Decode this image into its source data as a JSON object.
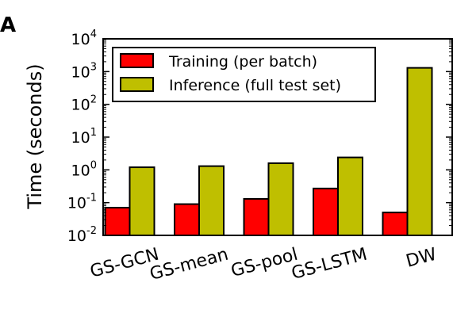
{
  "panel_label": "A",
  "chart_data": {
    "type": "bar",
    "categories": [
      "GS-GCN",
      "GS-mean",
      "GS-pool",
      "GS-LSTM",
      "DW"
    ],
    "series": [
      {
        "name": "Training (per batch)",
        "color": "#ff0000",
        "values": [
          0.07,
          0.09,
          0.13,
          0.27,
          0.05
        ]
      },
      {
        "name": "Inference (full test set)",
        "color": "#bfbf00",
        "values": [
          1.2,
          1.3,
          1.6,
          2.4,
          1300
        ]
      }
    ],
    "ylabel": "Time (seconds)",
    "yscale": "log",
    "ylim": [
      0.01,
      10000
    ],
    "yticks": [
      {
        "base": "10",
        "exp": "-2",
        "value": 0.01
      },
      {
        "base": "10",
        "exp": "-1",
        "value": 0.1
      },
      {
        "base": "10",
        "exp": "0",
        "value": 1
      },
      {
        "base": "10",
        "exp": "1",
        "value": 10
      },
      {
        "base": "10",
        "exp": "2",
        "value": 100
      },
      {
        "base": "10",
        "exp": "3",
        "value": 1000
      },
      {
        "base": "10",
        "exp": "4",
        "value": 10000
      }
    ],
    "legend_position": "top-left",
    "grid": false
  }
}
